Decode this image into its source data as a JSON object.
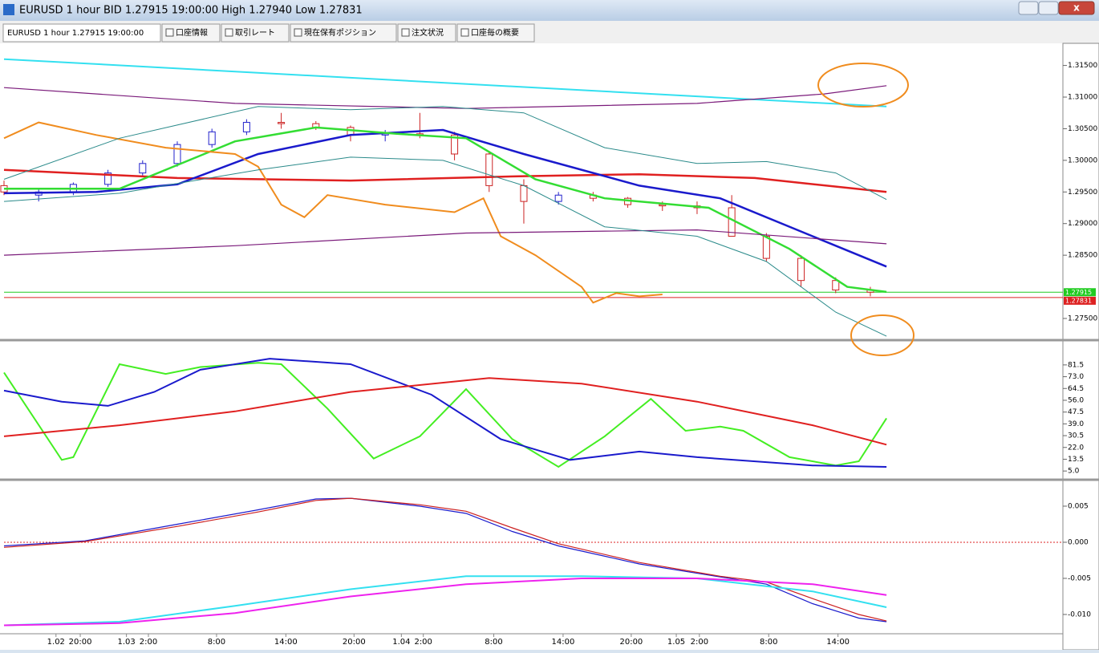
{
  "window": {
    "title": "EURUSD 1 hour BID 1.27915 19:00:00 High 1.27940 Low 1.27831"
  },
  "tabs": [
    "EURUSD 1 hour 1.27915 19:00:00",
    "口座情報",
    "取引レート",
    "現在保有ポジション",
    "注文状況",
    "口座毎の概要"
  ],
  "xaxis": {
    "xlim": [
      0,
      91.67
    ],
    "ticks": [
      {
        "value": 4.5,
        "label": "1.02"
      },
      {
        "value": 6.6,
        "label": "20:00"
      },
      {
        "value": 10.6,
        "label": "1.03"
      },
      {
        "value": 12.5,
        "label": "2:00"
      },
      {
        "value": 18.4,
        "label": "8:00"
      },
      {
        "value": 24.4,
        "label": "14:00"
      },
      {
        "value": 30.3,
        "label": "20:00"
      },
      {
        "value": 34.4,
        "label": "1.04"
      },
      {
        "value": 36.3,
        "label": "2:00"
      },
      {
        "value": 42.4,
        "label": "8:00"
      },
      {
        "value": 48.4,
        "label": "14:00"
      },
      {
        "value": 54.3,
        "label": "20:00"
      },
      {
        "value": 58.2,
        "label": "1.05"
      },
      {
        "value": 60.2,
        "label": "2:00"
      },
      {
        "value": 66.2,
        "label": "8:00"
      },
      {
        "value": 72.2,
        "label": "14:00"
      }
    ]
  },
  "panels": [
    {
      "ylim": [
        1.2717,
        1.3185
      ],
      "yticks": [
        {
          "value": 1.315,
          "label": "1.31500"
        },
        {
          "value": 1.31,
          "label": "1.31000"
        },
        {
          "value": 1.305,
          "label": "1.30500"
        },
        {
          "value": 1.3,
          "label": "1.30000"
        },
        {
          "value": 1.295,
          "label": "1.29500"
        },
        {
          "value": 1.29,
          "label": "1.29000"
        },
        {
          "value": 1.285,
          "label": "1.28500"
        },
        {
          "value": 1.275,
          "label": "1.27500"
        }
      ],
      "candles": {
        "x": [
          0,
          3,
          6,
          9,
          12,
          15,
          18,
          21,
          24,
          27,
          30,
          33,
          36,
          39,
          42,
          45,
          48,
          51,
          54,
          57,
          60,
          63,
          66,
          69,
          72,
          75
        ],
        "open": [
          1.296,
          1.2945,
          1.295,
          1.2962,
          1.298,
          1.2995,
          1.3025,
          1.3045,
          1.306,
          1.3058,
          1.3052,
          1.304,
          1.3042,
          1.304,
          1.301,
          1.296,
          1.2935,
          1.2945,
          1.294,
          1.293,
          1.2928,
          1.2925,
          1.288,
          1.2845,
          1.281,
          1.2795
        ],
        "high": [
          1.2968,
          1.2955,
          1.2965,
          1.2985,
          1.3,
          1.303,
          1.305,
          1.3065,
          1.3075,
          1.3062,
          1.3055,
          1.3048,
          1.3075,
          1.3045,
          1.3015,
          1.297,
          1.295,
          1.295,
          1.2942,
          1.2935,
          1.2935,
          1.2945,
          1.2885,
          1.285,
          1.2815,
          1.28
        ],
        "low": [
          1.2945,
          1.2935,
          1.2945,
          1.2958,
          1.2975,
          1.299,
          1.302,
          1.304,
          1.305,
          1.3048,
          1.303,
          1.303,
          1.3035,
          1.3,
          1.295,
          1.29,
          1.293,
          1.2935,
          1.2925,
          1.292,
          1.2915,
          1.288,
          1.284,
          1.28,
          1.279,
          1.2785
        ],
        "close": [
          1.295,
          1.295,
          1.2962,
          1.298,
          1.2995,
          1.3025,
          1.3045,
          1.306,
          1.3058,
          1.3052,
          1.304,
          1.3042,
          1.304,
          1.301,
          1.296,
          1.2935,
          1.2945,
          1.294,
          1.293,
          1.2928,
          1.2925,
          1.288,
          1.2845,
          1.281,
          1.2795,
          1.27915
        ]
      },
      "series": [
        {
          "color": "#33e0f0",
          "width": 2,
          "x": [
            0,
            76.4
          ],
          "values": [
            1.316,
            1.3085
          ]
        },
        {
          "color": "#e02020",
          "width": 2.5,
          "x": [
            0,
            15,
            30,
            45,
            55,
            65,
            76.4
          ],
          "values": [
            1.2985,
            1.2972,
            1.2968,
            1.2975,
            1.2978,
            1.2972,
            1.295
          ]
        },
        {
          "color": "#1a1acc",
          "width": 2.5,
          "x": [
            0,
            8,
            15,
            22,
            30,
            38,
            45,
            55,
            62,
            70,
            76.4
          ],
          "values": [
            1.2948,
            1.295,
            1.2962,
            1.301,
            1.304,
            1.3048,
            1.301,
            1.296,
            1.294,
            1.288,
            1.2832
          ]
        },
        {
          "color": "#33dd33",
          "width": 2.5,
          "x": [
            0,
            10,
            20,
            27,
            34,
            40,
            46,
            52,
            61,
            68,
            73,
            76.4
          ],
          "values": [
            1.2955,
            1.2955,
            1.303,
            1.3052,
            1.3042,
            1.3035,
            1.297,
            1.294,
            1.2925,
            1.286,
            1.28,
            1.2792
          ]
        },
        {
          "color": "#f08c1e",
          "width": 2,
          "x": [
            0,
            3,
            8,
            14,
            20,
            22,
            24,
            26,
            28,
            33,
            39,
            41.5,
            43,
            46,
            50,
            51,
            53,
            55,
            57
          ],
          "values": [
            1.3035,
            1.306,
            1.304,
            1.302,
            1.301,
            1.299,
            1.293,
            1.291,
            1.2945,
            1.293,
            1.2918,
            1.294,
            1.288,
            1.285,
            1.28,
            1.2775,
            1.279,
            1.2785,
            1.2788
          ]
        },
        {
          "color": "#7a1a7a",
          "width": 1.2,
          "x": [
            0,
            20,
            40,
            60,
            71,
            76.4
          ],
          "values": [
            1.3115,
            1.309,
            1.3082,
            1.309,
            1.3105,
            1.3118
          ]
        },
        {
          "color": "#7a1a7a",
          "width": 1.2,
          "x": [
            0,
            20,
            40,
            60,
            76.4
          ],
          "values": [
            1.285,
            1.2865,
            1.2885,
            1.289,
            1.2868
          ]
        },
        {
          "color": "#2a8a8a",
          "width": 1,
          "x": [
            0,
            10,
            22,
            30,
            38,
            45,
            52,
            60,
            66,
            72,
            76.4
          ],
          "values": [
            1.297,
            1.3035,
            1.3085,
            1.308,
            1.3085,
            1.3075,
            1.302,
            1.2995,
            1.2998,
            1.298,
            1.2938
          ]
        },
        {
          "color": "#2a8a8a",
          "width": 1,
          "x": [
            0,
            10,
            22,
            30,
            38,
            45,
            52,
            60,
            66,
            72,
            76.4
          ],
          "values": [
            1.2935,
            1.2948,
            1.2985,
            1.3005,
            1.3,
            1.296,
            1.2895,
            1.288,
            1.284,
            1.276,
            1.2722
          ]
        }
      ],
      "levels": [
        {
          "value": 1.27915,
          "color": "#22cc22"
        },
        {
          "value": 1.27831,
          "color": "#dd2222"
        }
      ]
    },
    {
      "ylim": [
        -0.7,
        98.2
      ],
      "yticks": [
        81.5,
        {
          "value": 73,
          "label": "73.0"
        },
        64.5,
        {
          "value": 56,
          "label": "56.0"
        },
        47.5,
        {
          "value": 39,
          "label": "39.0"
        },
        30.5,
        {
          "value": 22,
          "label": "22.0"
        },
        13.5,
        {
          "value": 5,
          "label": "5.0"
        }
      ],
      "series": [
        {
          "color": "#44ee22",
          "width": 2,
          "x": [
            0,
            5,
            6,
            10,
            14,
            17,
            22,
            24,
            28,
            32,
            36,
            40,
            44,
            48,
            52,
            56,
            59,
            62,
            64,
            68,
            72,
            74,
            76.4
          ],
          "values": [
            76,
            13,
            15,
            82,
            75,
            80,
            83,
            82,
            50,
            14,
            30,
            64,
            28,
            8,
            30,
            57,
            34,
            37,
            34,
            15,
            9,
            12,
            43
          ]
        },
        {
          "color": "#1a1acc",
          "width": 2,
          "x": [
            0,
            5,
            9,
            13,
            17,
            23,
            30,
            37,
            43,
            49,
            55,
            60,
            70,
            76.4
          ],
          "values": [
            63,
            55,
            52,
            62,
            78,
            86,
            82,
            60,
            28,
            13,
            19,
            15,
            9,
            8
          ]
        },
        {
          "color": "#e02020",
          "width": 2,
          "x": [
            0,
            10,
            20,
            30,
            42,
            50,
            60,
            70,
            76.4
          ],
          "values": [
            30,
            38,
            48,
            62,
            72,
            68,
            55,
            38,
            24
          ]
        }
      ]
    },
    {
      "ylim": [
        -0.01267,
        0.00844
      ],
      "yticks": [
        0.005,
        {
          "value": 0,
          "label": "0.000"
        },
        {
          "value": -0.005,
          "label": "-0.005"
        },
        {
          "value": -0.01,
          "label": "-0.010"
        }
      ],
      "zero_line": "#dd2222",
      "series": [
        {
          "color": "#1a1acc",
          "width": 1.2,
          "x": [
            0,
            7,
            15,
            22,
            27,
            30,
            36,
            40,
            44,
            48,
            55,
            62,
            66,
            70,
            74,
            76.4
          ],
          "values": [
            -0.0005,
            0.0002,
            0.0025,
            0.0045,
            0.006,
            0.0061,
            0.005,
            0.004,
            0.0015,
            -0.0005,
            -0.003,
            -0.0048,
            -0.0058,
            -0.0085,
            -0.0105,
            -0.011
          ]
        },
        {
          "color": "#cc2020",
          "width": 1.2,
          "x": [
            0,
            7,
            15,
            22,
            27,
            30,
            36,
            40,
            44,
            48,
            55,
            62,
            66,
            70,
            74,
            76.4
          ],
          "values": [
            -0.0007,
            0.0001,
            0.0022,
            0.0042,
            0.0058,
            0.0061,
            0.0052,
            0.0043,
            0.002,
            -0.0002,
            -0.0028,
            -0.0047,
            -0.0055,
            -0.0078,
            -0.01,
            -0.0109
          ]
        },
        {
          "color": "#33e0f0",
          "width": 2,
          "x": [
            0,
            10,
            20,
            30,
            40,
            50,
            60,
            70,
            76.4
          ],
          "values": [
            -0.0115,
            -0.011,
            -0.0088,
            -0.0065,
            -0.0047,
            -0.0047,
            -0.005,
            -0.0068,
            -0.009
          ]
        },
        {
          "color": "#ee22ee",
          "width": 2,
          "x": [
            0,
            10,
            20,
            30,
            40,
            50,
            60,
            70,
            76.4
          ],
          "values": [
            -0.0115,
            -0.0112,
            -0.0098,
            -0.0075,
            -0.0058,
            -0.005,
            -0.005,
            -0.0058,
            -0.0073
          ]
        }
      ]
    }
  ]
}
